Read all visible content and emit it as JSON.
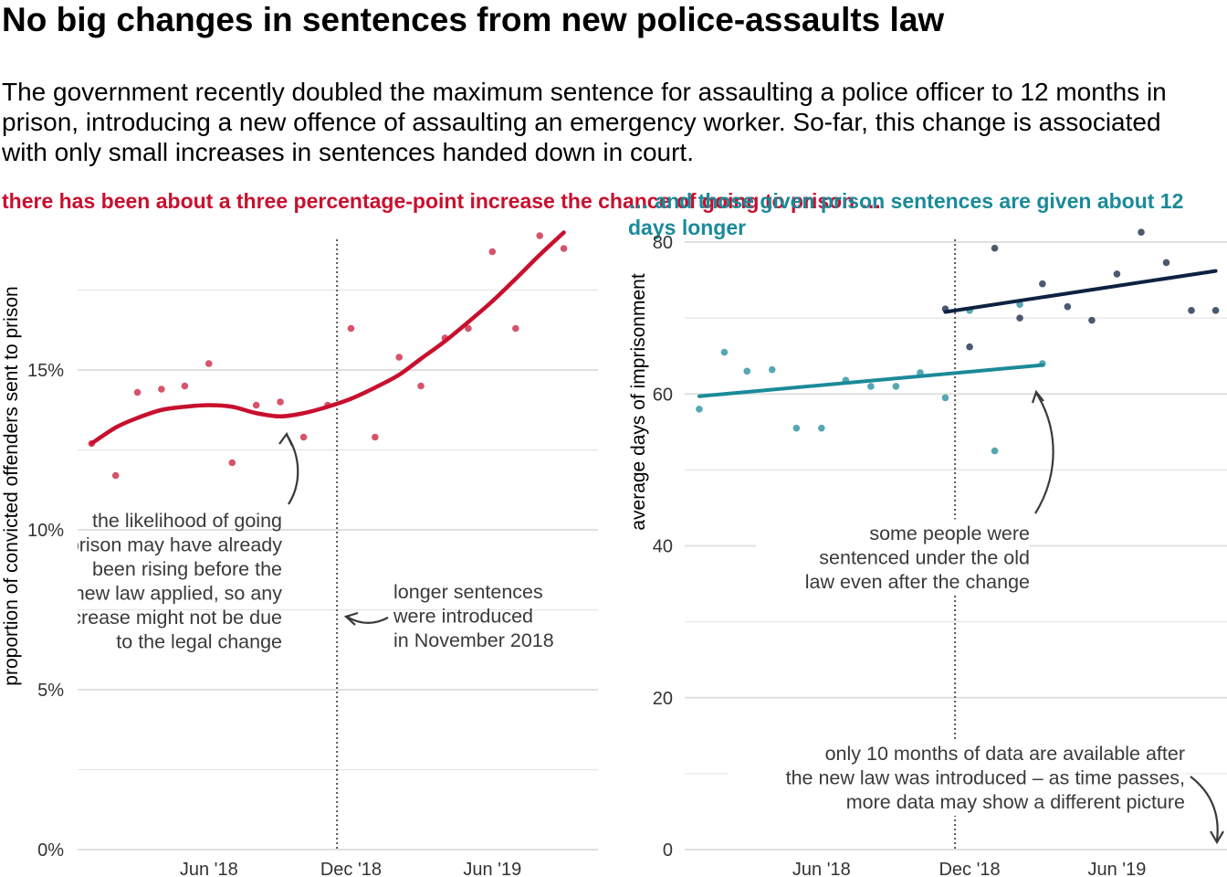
{
  "title": "No big changes in sentences from new police-assaults law",
  "subtitle": "The government recently doubled the maximum sentence for assaulting a police officer to 12 months in prison, introducing a new offence of assaulting an emergency worker. So-far, this change is associated with only small increases in sentences handed down in court.",
  "colors": {
    "left_series": "#c8102e",
    "before_series": "#1b8a99",
    "after_series": "#0d2240",
    "annotation": "#3a3a3a",
    "cutoff_line": "#555555"
  },
  "chart_data": [
    {
      "type": "scatter",
      "heading": "there has been about a three percentage-point increase the chance of going to prison …",
      "xlabel": "",
      "ylabel": "proportion of convicted offenders sent to prison",
      "ylim": [
        0,
        19
      ],
      "xlim": [
        "2017-12-14",
        "2019-10-15"
      ],
      "y_ticks": [
        0,
        5,
        10,
        15
      ],
      "y_tick_labels": [
        "0%",
        "5%",
        "10%",
        "15%"
      ],
      "x_ticks": [
        "2018-06-01",
        "2018-12-01",
        "2019-06-01"
      ],
      "x_tick_labels": [
        "Jun '18",
        "Dec '18",
        "Jun '19"
      ],
      "grid": true,
      "cutoff_date": "2018-11-13",
      "series": [
        {
          "kind": "points",
          "x": [
            "2018-01-01",
            "2018-02-01",
            "2018-03-01",
            "2018-04-01",
            "2018-05-01",
            "2018-06-01",
            "2018-07-01",
            "2018-08-01",
            "2018-09-01",
            "2018-10-01",
            "2018-11-01",
            "2018-12-01",
            "2019-01-01",
            "2019-02-01",
            "2019-03-01",
            "2019-04-01",
            "2019-05-01",
            "2019-06-01",
            "2019-07-01",
            "2019-08-01",
            "2019-09-01"
          ],
          "y": [
            12.7,
            11.7,
            14.3,
            14.4,
            14.5,
            15.2,
            12.1,
            13.9,
            14.0,
            12.9,
            13.9,
            16.3,
            12.9,
            15.4,
            14.5,
            16.0,
            16.3,
            18.7,
            16.3,
            19.2,
            18.8
          ]
        },
        {
          "kind": "smooth",
          "x": [
            "2018-01-01",
            "2018-02-01",
            "2018-03-01",
            "2018-04-01",
            "2018-05-01",
            "2018-06-01",
            "2018-07-01",
            "2018-08-01",
            "2018-09-01",
            "2018-10-01",
            "2018-11-01",
            "2018-12-01",
            "2019-01-01",
            "2019-02-01",
            "2019-03-01",
            "2019-04-01",
            "2019-05-01",
            "2019-06-01",
            "2019-07-01",
            "2019-08-01",
            "2019-09-01"
          ],
          "y": [
            12.7,
            13.2,
            13.5,
            13.75,
            13.85,
            13.9,
            13.85,
            13.65,
            13.55,
            13.65,
            13.85,
            14.1,
            14.45,
            14.85,
            15.35,
            15.9,
            16.5,
            17.15,
            17.85,
            18.6,
            19.3
          ]
        }
      ],
      "annotations": [
        {
          "lines": [
            "the likelihood of going",
            "to prison may have already",
            "been rising before the",
            "new law applied, so any",
            "increase might not be due",
            "to the legal change"
          ]
        },
        {
          "lines": [
            "longer sentences",
            "were introduced",
            "in November 2018"
          ]
        }
      ]
    },
    {
      "type": "scatter",
      "heading": "… and those given prison sentences are given about 12 days longer",
      "xlabel": "",
      "ylabel": "average days of imprisonment",
      "ylim": [
        0,
        80
      ],
      "xlim": [
        "2017-12-14",
        "2019-10-15"
      ],
      "y_ticks": [
        0,
        20,
        40,
        60,
        80
      ],
      "y_tick_labels": [
        "0",
        "20",
        "40",
        "60",
        "80"
      ],
      "x_ticks": [
        "2018-06-01",
        "2018-12-01",
        "2019-06-01"
      ],
      "x_tick_labels": [
        "Jun '18",
        "Dec '18",
        "Jun '19"
      ],
      "grid": true,
      "cutoff_date": "2018-11-13",
      "series": [
        {
          "kind": "points",
          "group": "before",
          "x": [
            "2018-01-01",
            "2018-02-01",
            "2018-03-01",
            "2018-04-01",
            "2018-05-01",
            "2018-06-01",
            "2018-07-01",
            "2018-08-01",
            "2018-09-01",
            "2018-10-01",
            "2018-11-01",
            "2018-12-01",
            "2019-01-01",
            "2019-02-01",
            "2019-03-01"
          ],
          "y": [
            58.0,
            65.5,
            63.0,
            63.2,
            55.5,
            55.5,
            61.8,
            61.0,
            61.0,
            62.8,
            59.5,
            71.0,
            52.5,
            71.8,
            64.0
          ]
        },
        {
          "kind": "points",
          "group": "after",
          "x": [
            "2018-11-01",
            "2018-12-01",
            "2019-01-01",
            "2019-02-01",
            "2019-03-01",
            "2019-04-01",
            "2019-05-01",
            "2019-06-01",
            "2019-07-01",
            "2019-08-01",
            "2019-09-01",
            "2019-10-01"
          ],
          "y": [
            71.2,
            66.2,
            79.2,
            70.0,
            74.5,
            71.5,
            69.7,
            75.8,
            81.3,
            77.3,
            71.0,
            71.0
          ]
        },
        {
          "kind": "trend",
          "group": "before",
          "x": [
            "2018-01-01",
            "2019-03-01"
          ],
          "y": [
            59.7,
            63.8
          ]
        },
        {
          "kind": "trend",
          "group": "after",
          "x": [
            "2018-11-01",
            "2019-10-01"
          ],
          "y": [
            70.8,
            76.2
          ]
        }
      ],
      "annotations": [
        {
          "lines": [
            "some people were",
            "sentenced under the old",
            "law even after the change"
          ]
        },
        {
          "lines": [
            "only 10 months of data are available after",
            "the new law was introduced – as time passes,",
            "more data may show a different picture"
          ]
        }
      ]
    }
  ]
}
